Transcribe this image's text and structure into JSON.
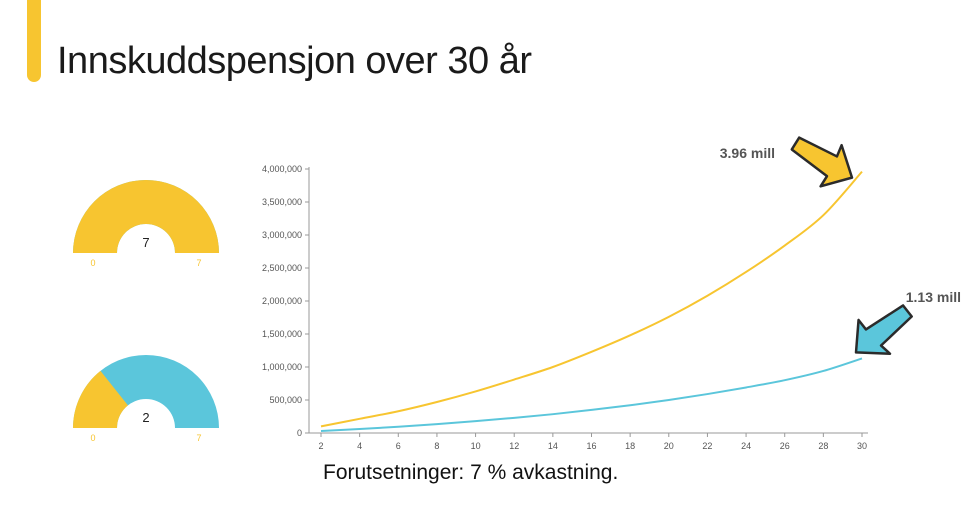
{
  "title": "Innskuddspensjon over 30 år",
  "footnote": "Forutsetninger: 7 % avkastning.",
  "colors": {
    "accent": "#F7C530",
    "yellow": "#F7C530",
    "teal": "#5BC6DB",
    "outline": "#2b2b2b",
    "axis": "#999999"
  },
  "gauges": [
    {
      "value": 7,
      "value_label": "7",
      "min_label": "0",
      "max_label": "7",
      "min": 0,
      "max": 7
    },
    {
      "value": 2,
      "value_label": "2",
      "min_label": "0",
      "max_label": "7",
      "min": 0,
      "max": 7
    }
  ],
  "annotations": {
    "yellow_end": "3.96 mill",
    "teal_end": "1.13 mill"
  },
  "chart_data": {
    "type": "line",
    "x_ticks": [
      "2",
      "4",
      "6",
      "8",
      "10",
      "12",
      "14",
      "16",
      "18",
      "20",
      "22",
      "24",
      "26",
      "28",
      "30"
    ],
    "y_ticks": [
      "0",
      "500,000",
      "1,000,000",
      "1,500,000",
      "2,000,000",
      "2,500,000",
      "3,000,000",
      "3,500,000",
      "4,000,000"
    ],
    "xlim": [
      2,
      30
    ],
    "ylim": [
      0,
      4000000
    ],
    "x": [
      2,
      4,
      6,
      8,
      10,
      12,
      14,
      16,
      18,
      20,
      22,
      24,
      26,
      28,
      30
    ],
    "series": [
      {
        "color": "#F7C530",
        "values": [
          100000,
          215000,
          330000,
          470000,
          630000,
          810000,
          1000000,
          1230000,
          1480000,
          1760000,
          2080000,
          2440000,
          2840000,
          3300000,
          3960000
        ]
      },
      {
        "color": "#5BC6DB",
        "values": [
          30000,
          60000,
          95000,
          135000,
          180000,
          230000,
          285000,
          350000,
          420000,
          500000,
          590000,
          690000,
          800000,
          940000,
          1130000
        ]
      }
    ]
  }
}
